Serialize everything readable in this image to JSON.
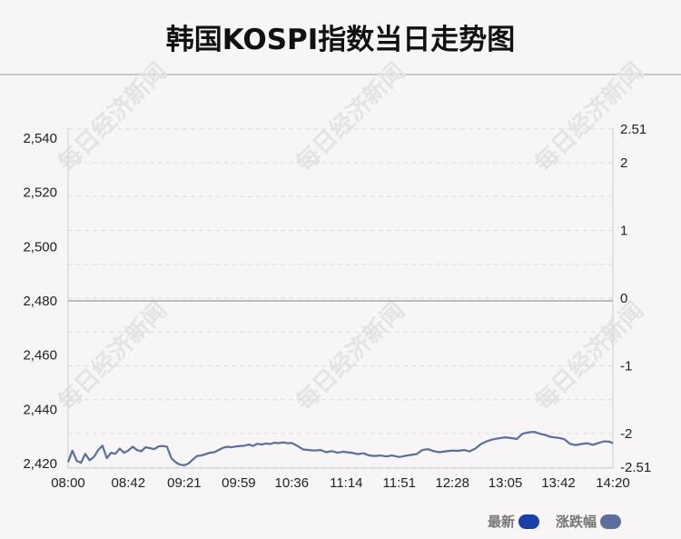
{
  "title": "韩国KOSPI指数当日走势图",
  "watermark": "每日经济新闻",
  "legend": [
    {
      "label": "最新",
      "color": "#1b3fa8"
    },
    {
      "label": "涨跌幅",
      "color": "#5c6f9c"
    }
  ],
  "chart_data": {
    "type": "line",
    "title": "韩国KOSPI指数当日走势图",
    "x_tick_labels": [
      "08:00",
      "08:42",
      "09:21",
      "09:59",
      "10:36",
      "11:14",
      "11:51",
      "12:28",
      "13:05",
      "13:42",
      "14:20"
    ],
    "y_left": {
      "ylim": [
        2420,
        2540
      ],
      "ticks": [
        2420,
        2440,
        2460,
        2480,
        2500,
        2520,
        2540
      ],
      "tick_labels": [
        "2,420",
        "2,440",
        "2,460",
        "2,480",
        "2,500",
        "2,520",
        "2,540"
      ]
    },
    "y_right": {
      "ylim": [
        -2.51,
        2.51
      ],
      "tick_labels": [
        "2.51",
        "2",
        "1",
        "0",
        "-1",
        "-2",
        "-2.51"
      ],
      "ticks": [
        2.51,
        2,
        1,
        0,
        -1,
        -2,
        -2.51
      ]
    },
    "reference_value": 2480,
    "grid": true,
    "legend_position": "bottom-right",
    "series": [
      {
        "name": "最新",
        "color": "#1b3fa8",
        "x": [
          "08:00",
          "08:03",
          "08:06",
          "08:09",
          "08:12",
          "08:15",
          "08:18",
          "08:21",
          "08:24",
          "08:27",
          "08:30",
          "08:33",
          "08:36",
          "08:39",
          "08:42",
          "08:45",
          "08:48",
          "08:51",
          "08:54",
          "08:57",
          "09:00",
          "09:03",
          "09:06",
          "09:09",
          "09:12",
          "09:15",
          "09:18",
          "09:21",
          "09:24",
          "09:27",
          "09:30",
          "09:33",
          "09:36",
          "09:39",
          "09:42",
          "09:45",
          "09:48",
          "09:51",
          "09:54",
          "09:57",
          "09:59",
          "10:03",
          "10:06",
          "10:09",
          "10:12",
          "10:15",
          "10:18",
          "10:21",
          "10:24",
          "10:27",
          "10:30",
          "10:33",
          "10:36",
          "10:40",
          "10:44",
          "10:48",
          "10:52",
          "10:56",
          "11:00",
          "11:04",
          "11:08",
          "11:12",
          "11:14",
          "11:18",
          "11:22",
          "11:26",
          "11:30",
          "11:34",
          "11:38",
          "11:42",
          "11:46",
          "11:51",
          "11:55",
          "11:59",
          "12:03",
          "12:07",
          "12:11",
          "12:15",
          "12:19",
          "12:23",
          "12:28",
          "12:32",
          "12:36",
          "12:40",
          "12:44",
          "12:48",
          "12:52",
          "12:56",
          "13:00",
          "13:05",
          "13:09",
          "13:13",
          "13:17",
          "13:21",
          "13:25",
          "13:29",
          "13:33",
          "13:37",
          "13:42",
          "13:46",
          "13:50",
          "13:54",
          "13:58",
          "14:02",
          "14:06",
          "14:10",
          "14:14",
          "14:18",
          "14:20"
        ],
        "values": [
          2420.5,
          2424.8,
          2421.0,
          2420.3,
          2423.6,
          2421.2,
          2422.4,
          2425.0,
          2426.6,
          2422.0,
          2424.0,
          2423.6,
          2425.5,
          2424.0,
          2424.8,
          2426.2,
          2425.0,
          2424.5,
          2426.0,
          2425.7,
          2425.3,
          2426.3,
          2426.5,
          2426.2,
          2422.0,
          2420.5,
          2419.6,
          2419.4,
          2420.0,
          2421.5,
          2422.8,
          2423.0,
          2423.5,
          2424.0,
          2424.2,
          2425.0,
          2425.8,
          2426.2,
          2426.0,
          2426.3,
          2426.4,
          2426.6,
          2427.0,
          2426.5,
          2427.3,
          2427.0,
          2427.4,
          2427.2,
          2427.7,
          2427.5,
          2427.8,
          2427.5,
          2427.6,
          2426.5,
          2425.2,
          2425.0,
          2424.8,
          2425.0,
          2424.2,
          2424.6,
          2424.0,
          2424.4,
          2424.2,
          2424.0,
          2423.5,
          2423.8,
          2423.0,
          2422.8,
          2423.0,
          2422.6,
          2423.0,
          2422.4,
          2422.8,
          2423.2,
          2423.5,
          2425.0,
          2425.3,
          2424.6,
          2424.2,
          2424.5,
          2424.8,
          2424.7,
          2425.0,
          2424.5,
          2425.5,
          2427.2,
          2428.2,
          2428.9,
          2429.3,
          2429.7,
          2429.4,
          2429.1,
          2431.0,
          2431.5,
          2431.7,
          2431.0,
          2430.5,
          2429.8,
          2429.5,
          2429.0,
          2427.3,
          2426.8,
          2427.2,
          2427.5,
          2426.9,
          2427.6,
          2428.2,
          2428.0,
          2427.5
        ]
      },
      {
        "name": "涨跌幅",
        "color": "#5c6f9c"
      }
    ]
  }
}
